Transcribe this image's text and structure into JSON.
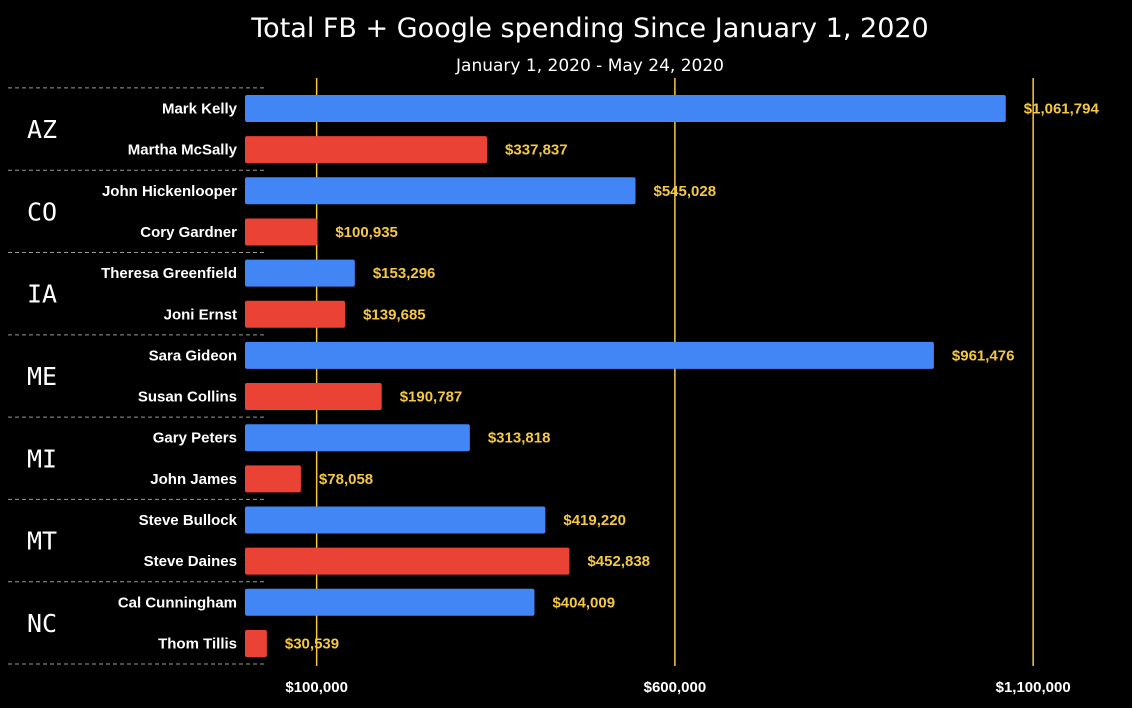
{
  "chart_data": {
    "type": "bar",
    "orientation": "horizontal",
    "title": "Total FB + Google spending Since January 1, 2020",
    "subtitle": "January 1, 2020 - May 24, 2020",
    "xlim": [
      0,
      1150000
    ],
    "x_ticks": [
      100000,
      600000,
      1100000
    ],
    "x_tick_labels": [
      "$100,000",
      "$600,000",
      "$1,100,000"
    ],
    "grid": true,
    "colors": {
      "background": "#000000",
      "democrat": "#4285f4",
      "republican": "#ea4335",
      "gridline": "#f5c842",
      "value_label": "#f5c842",
      "text": "#ffffff"
    },
    "groups": [
      {
        "state": "AZ",
        "candidates": [
          {
            "name": "Mark Kelly",
            "value": 1061794,
            "label": "$1,061,794",
            "party": "democrat"
          },
          {
            "name": "Martha McSally",
            "value": 337837,
            "label": "$337,837",
            "party": "republican"
          }
        ]
      },
      {
        "state": "CO",
        "candidates": [
          {
            "name": "John Hickenlooper",
            "value": 545028,
            "label": "$545,028",
            "party": "democrat"
          },
          {
            "name": "Cory Gardner",
            "value": 100935,
            "label": "$100,935",
            "party": "republican"
          }
        ]
      },
      {
        "state": "IA",
        "candidates": [
          {
            "name": "Theresa Greenfield",
            "value": 153296,
            "label": "$153,296",
            "party": "democrat"
          },
          {
            "name": "Joni Ernst",
            "value": 139685,
            "label": "$139,685",
            "party": "republican"
          }
        ]
      },
      {
        "state": "ME",
        "candidates": [
          {
            "name": "Sara Gideon",
            "value": 961476,
            "label": "$961,476",
            "party": "democrat"
          },
          {
            "name": "Susan Collins",
            "value": 190787,
            "label": "$190,787",
            "party": "republican"
          }
        ]
      },
      {
        "state": "MI",
        "candidates": [
          {
            "name": "Gary Peters",
            "value": 313818,
            "label": "$313,818",
            "party": "democrat"
          },
          {
            "name": "John James",
            "value": 78058,
            "label": "$78,058",
            "party": "republican"
          }
        ]
      },
      {
        "state": "MT",
        "candidates": [
          {
            "name": "Steve Bullock",
            "value": 419220,
            "label": "$419,220",
            "party": "democrat"
          },
          {
            "name": "Steve Daines",
            "value": 452838,
            "label": "$452,838",
            "party": "republican"
          }
        ]
      },
      {
        "state": "NC",
        "candidates": [
          {
            "name": "Cal Cunningham",
            "value": 404009,
            "label": "$404,009",
            "party": "democrat"
          },
          {
            "name": "Thom Tillis",
            "value": 30539,
            "label": "$30,539",
            "party": "republican"
          }
        ]
      }
    ]
  }
}
